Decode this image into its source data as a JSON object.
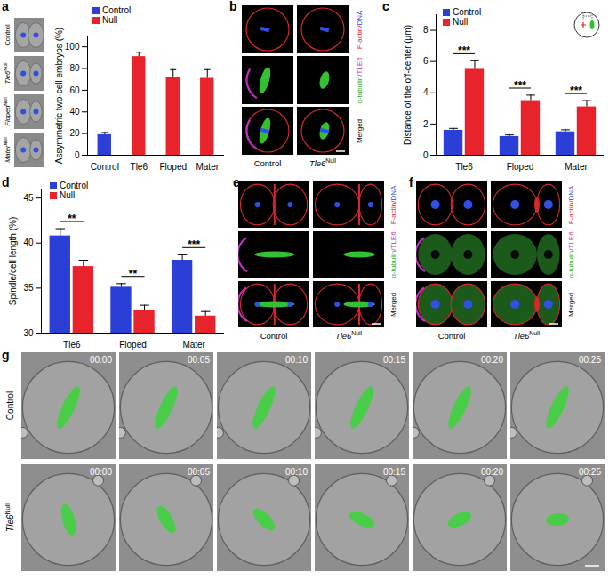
{
  "chart_data": [
    {
      "panel": "a",
      "type": "bar",
      "categories": [
        "Control",
        "Tle6",
        "Floped",
        "Mater"
      ],
      "values": [
        19,
        91,
        72,
        71
      ],
      "errors": [
        2,
        4,
        7,
        8
      ],
      "colors": [
        "#2b3fd6",
        "#e8232b",
        "#e8232b",
        "#e8232b"
      ],
      "y_label": "Assymmetric two-cell embryos (%)",
      "ylim": [
        0,
        110
      ],
      "yticks": [
        0,
        20,
        40,
        60,
        80,
        100
      ],
      "legend": "top-left",
      "legend_items": [
        {
          "name": "Control",
          "color": "#2b3fd6"
        },
        {
          "name": "Null",
          "color": "#e8232b"
        }
      ],
      "image_labels": [
        {
          "text": "Control"
        },
        {
          "text": "Tle6",
          "sup": "Null"
        },
        {
          "text": "Floped",
          "sup": "Null"
        },
        {
          "text": "Mater",
          "sup": "Null"
        }
      ]
    },
    {
      "panel": "c",
      "type": "bar",
      "categories": [
        "Tle6",
        "Floped",
        "Mater"
      ],
      "series": [
        {
          "name": "Control",
          "color": "#2b3fd6",
          "values": [
            1.6,
            1.2,
            1.5
          ],
          "errors": [
            0.12,
            0.1,
            0.13
          ]
        },
        {
          "name": "Null",
          "color": "#e8232b",
          "values": [
            5.5,
            3.5,
            3.1
          ],
          "errors": [
            0.55,
            0.35,
            0.4
          ]
        }
      ],
      "significance": [
        "***",
        "***",
        "***"
      ],
      "y_label": "Distance of the off-center (μm)",
      "ylim": [
        0,
        9
      ],
      "yticks": [
        0,
        2,
        4,
        6,
        8
      ],
      "legend": "top-left"
    },
    {
      "panel": "d",
      "type": "bar",
      "categories": [
        "Tle6",
        "Floped",
        "Mater"
      ],
      "series": [
        {
          "name": "Control",
          "color": "#2b3fd6",
          "values": [
            40.8,
            35.1,
            38.1
          ],
          "errors": [
            0.8,
            0.4,
            0.6
          ]
        },
        {
          "name": "Null",
          "color": "#e8232b",
          "values": [
            37.4,
            32.5,
            31.9
          ],
          "errors": [
            0.7,
            0.6,
            0.5
          ]
        }
      ],
      "significance": [
        "**",
        "**",
        "***"
      ],
      "y_label": "Spindle/cell length (%)",
      "ylim": [
        30,
        46
      ],
      "yticks": [
        30,
        35,
        40,
        45
      ],
      "legend": "top-left"
    }
  ],
  "image_panels": [
    {
      "panel": "b",
      "columns": [
        {
          "text": "Control"
        },
        {
          "text": "Tle6",
          "sup": "Null"
        }
      ],
      "rows": [
        {
          "parts": [
            {
              "text": "F-actin/",
              "color": "#e8232b"
            },
            {
              "text": "DNA",
              "color": "#2b3fd6"
            }
          ]
        },
        {
          "parts": [
            {
              "text": "α-tubulin/",
              "color": "#2ea836"
            },
            {
              "text": "TLE6",
              "color": "#c030c0"
            }
          ]
        },
        {
          "parts": [
            {
              "text": "Merged",
              "color": "#000000"
            }
          ]
        }
      ]
    },
    {
      "panel": "e",
      "columns": [
        {
          "text": "Control"
        },
        {
          "text": "Tle6",
          "sup": "Null"
        }
      ],
      "rows": [
        {
          "parts": [
            {
              "text": "F-actin/",
              "color": "#e8232b"
            },
            {
              "text": "DNA",
              "color": "#2b3fd6"
            }
          ]
        },
        {
          "parts": [
            {
              "text": "α-tubulin/",
              "color": "#2ea836"
            },
            {
              "text": "TLE6",
              "color": "#c030c0"
            }
          ]
        },
        {
          "parts": [
            {
              "text": "Merged",
              "color": "#000000"
            }
          ]
        }
      ]
    },
    {
      "panel": "f",
      "columns": [
        {
          "text": "Control"
        },
        {
          "text": "Tle6",
          "sup": "Null"
        }
      ],
      "rows": [
        {
          "parts": [
            {
              "text": "F-actin/",
              "color": "#e8232b"
            },
            {
              "text": "DNA",
              "color": "#2b3fd6"
            }
          ]
        },
        {
          "parts": [
            {
              "text": "α-tubulin/",
              "color": "#2ea836"
            },
            {
              "text": "TLE6",
              "color": "#c030c0"
            }
          ]
        },
        {
          "parts": [
            {
              "text": "Merged",
              "color": "#000000"
            }
          ]
        }
      ]
    },
    {
      "panel": "g",
      "rows": [
        {
          "text": "Control"
        },
        {
          "text": "Tle6",
          "sup": "Null"
        }
      ],
      "times": [
        "00:00",
        "00:05",
        "00:10",
        "00:15",
        "00:20",
        "00:25"
      ]
    }
  ]
}
